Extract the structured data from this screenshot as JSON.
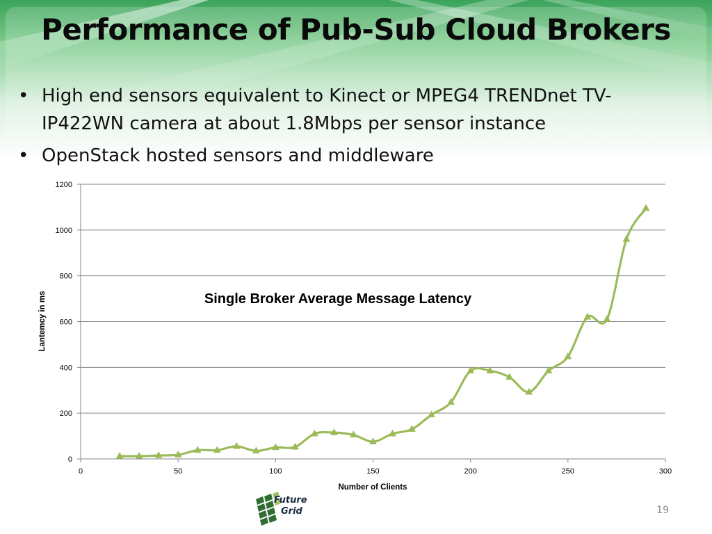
{
  "slide": {
    "title": "Performance of Pub-Sub Cloud Brokers",
    "bullets": [
      "High end sensors equivalent to Kinect or MPEG4 TRENDnet TV-IP422WN camera at about 1.8Mbps per sensor instance",
      "OpenStack hosted sensors and middleware"
    ],
    "page_number": "19",
    "logo": {
      "line1": "Future",
      "line2": "Grid"
    }
  },
  "colors": {
    "series": "#9bbb59",
    "grid": "#868686",
    "background_accent": "#2e9a4e"
  },
  "chart_data": {
    "type": "line",
    "title": "Single Broker Average Message Latency",
    "xlabel": "Number of Clients",
    "ylabel": "Lantemcy in ms",
    "xlim": [
      0,
      300
    ],
    "ylim": [
      0,
      1200
    ],
    "xticks": [
      0,
      50,
      100,
      150,
      200,
      250,
      300
    ],
    "yticks": [
      0,
      200,
      400,
      600,
      800,
      1000,
      1200
    ],
    "grid": "horizontal",
    "smooth": true,
    "marker": "triangle",
    "series": [
      {
        "x": [
          20,
          30,
          40,
          50,
          60,
          70,
          80,
          90,
          100,
          110,
          120,
          130,
          140,
          150,
          160,
          170,
          180,
          190,
          200,
          210,
          220,
          230,
          240,
          250,
          260,
          270,
          280,
          290
        ],
        "y": [
          12,
          12,
          15,
          18,
          38,
          38,
          55,
          35,
          50,
          52,
          110,
          115,
          105,
          75,
          110,
          130,
          193,
          248,
          385,
          385,
          357,
          292,
          385,
          447,
          620,
          610,
          960,
          1095
        ]
      }
    ]
  }
}
